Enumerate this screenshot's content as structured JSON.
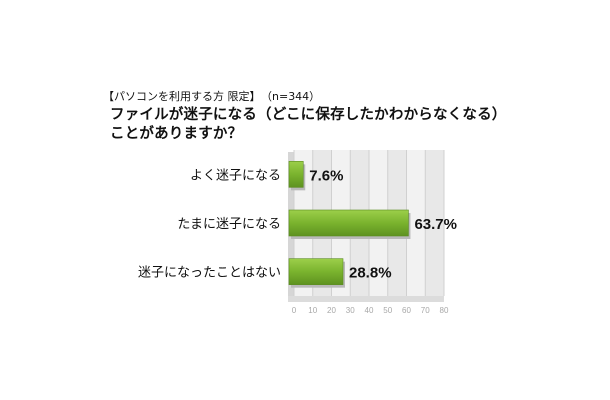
{
  "header": {
    "condition": "【パソコンを利用する方 限定】",
    "sample": "（n=344）"
  },
  "chart_data": {
    "type": "bar",
    "orientation": "horizontal",
    "title_lines": [
      "ファイルが迷子になる（どこに保存したかわからなくなる）",
      "ことがありますか？"
    ],
    "categories": [
      "よく迷子になる",
      "たまに迷子になる",
      "迷子になったことはない"
    ],
    "values": [
      7.6,
      63.7,
      28.8
    ],
    "value_labels": [
      "7.6%",
      "63.7%",
      "28.8%"
    ],
    "xlim": [
      0,
      80
    ],
    "x_ticks": [
      0,
      10,
      20,
      30,
      40,
      50,
      60,
      70,
      80
    ],
    "grid": true,
    "bar_color": "#7ab32e"
  }
}
